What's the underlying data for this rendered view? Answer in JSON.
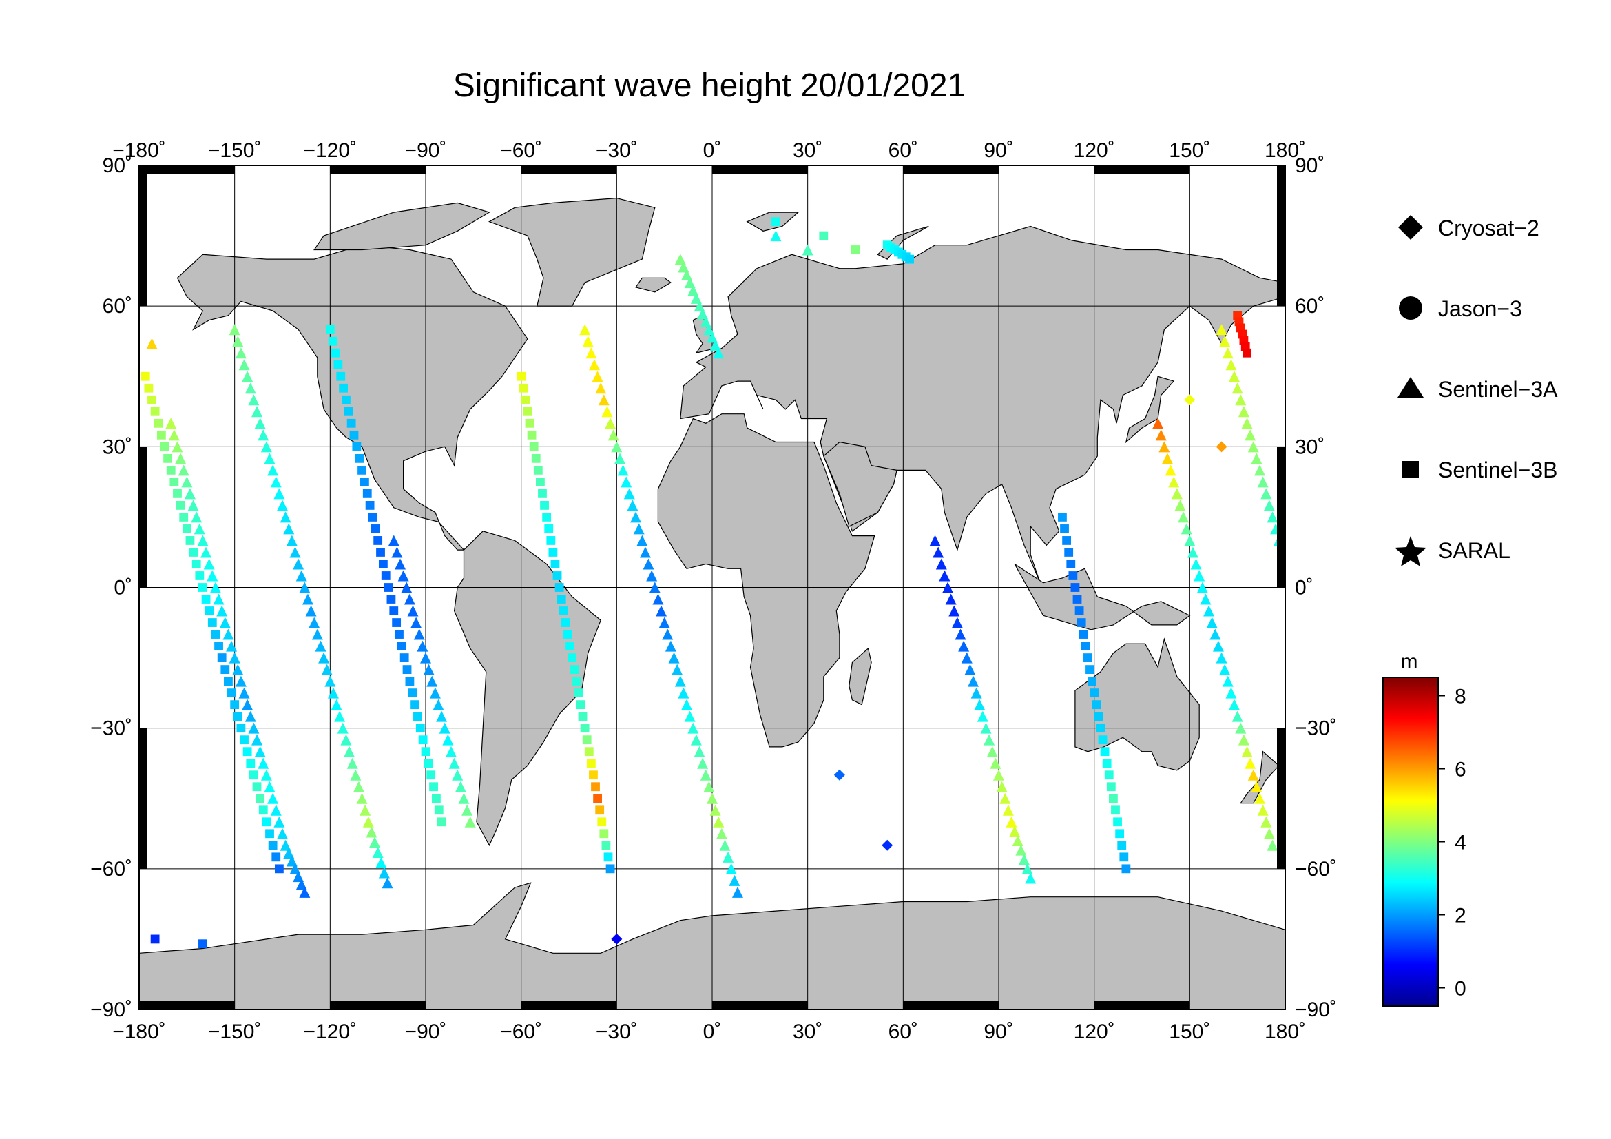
{
  "title": "Significant wave height 20/01/2021",
  "map": {
    "lon_ticks": [
      -180,
      -150,
      -120,
      -90,
      -60,
      -30,
      0,
      30,
      60,
      90,
      120,
      150,
      180
    ],
    "lat_ticks": [
      90,
      60,
      30,
      0,
      -30,
      -60,
      -90
    ],
    "lon_labels": [
      "−180˚",
      "−150˚",
      "−120˚",
      "−90˚",
      "−60˚",
      "−30˚",
      "0˚",
      "30˚",
      "60˚",
      "90˚",
      "120˚",
      "150˚",
      "180˚"
    ],
    "lat_labels": [
      "90˚",
      "60˚",
      "30˚",
      "0˚",
      "−30˚",
      "−60˚",
      "−90˚"
    ],
    "land_color": "#bebebe",
    "ocean_color": "#ffffff",
    "grid": true
  },
  "legend": {
    "items": [
      {
        "label": "Cryosat−2",
        "symbol": "diamond"
      },
      {
        "label": "Jason−3",
        "symbol": "circle"
      },
      {
        "label": "Sentinel−3A",
        "symbol": "triangle"
      },
      {
        "label": "Sentinel−3B",
        "symbol": "square"
      },
      {
        "label": "SARAL",
        "symbol": "star"
      }
    ]
  },
  "colorbar": {
    "unit": "m",
    "min": -0.5,
    "max": 8.5,
    "tick_values": [
      0,
      2,
      4,
      6,
      8
    ],
    "tick_labels": [
      "0",
      "2",
      "4",
      "6",
      "8"
    ],
    "colors": [
      "#00008f",
      "#0000ff",
      "#0080ff",
      "#00ffff",
      "#80ff80",
      "#ffff00",
      "#ff8000",
      "#ff0000",
      "#800000"
    ]
  },
  "chart_data": {
    "type": "scatter",
    "title": "Significant wave height 20/01/2021",
    "x_axis": "longitude",
    "y_axis": "latitude",
    "xlim": [
      -180,
      180
    ],
    "ylim": [
      -90,
      90
    ],
    "color_variable": "significant wave height (m)",
    "series": [
      {
        "name": "Sentinel−3A",
        "symbol": "triangle",
        "points": [
          [
            -176,
            52,
            5.5
          ],
          [
            -170,
            35,
            4.5
          ],
          [
            -164,
            20,
            3.5
          ],
          [
            -158,
            5,
            3
          ],
          [
            -152,
            -10,
            2.5
          ],
          [
            -146,
            -25,
            2
          ],
          [
            -140,
            -40,
            3
          ],
          [
            -134,
            -55,
            2.5
          ],
          [
            -128,
            -65,
            1.5
          ],
          [
            -150,
            55,
            4
          ],
          [
            -144,
            40,
            3.5
          ],
          [
            -138,
            25,
            3
          ],
          [
            -132,
            10,
            2.5
          ],
          [
            -126,
            -5,
            2
          ],
          [
            -120,
            -20,
            2.5
          ],
          [
            -114,
            -35,
            3.5
          ],
          [
            -108,
            -50,
            4.5
          ],
          [
            -102,
            -63,
            2
          ],
          [
            -100,
            10,
            1.5
          ],
          [
            -94,
            -5,
            1.5
          ],
          [
            -88,
            -20,
            2
          ],
          [
            -82,
            -35,
            3
          ],
          [
            -76,
            -50,
            4
          ],
          [
            -40,
            55,
            5
          ],
          [
            -34,
            40,
            5.5
          ],
          [
            -28,
            25,
            3
          ],
          [
            -22,
            10,
            2
          ],
          [
            -16,
            -5,
            1.5
          ],
          [
            -10,
            -20,
            2.5
          ],
          [
            -4,
            -35,
            3.5
          ],
          [
            2,
            -50,
            4.5
          ],
          [
            8,
            -65,
            2
          ],
          [
            -10,
            70,
            4
          ],
          [
            -4,
            60,
            3.5
          ],
          [
            2,
            50,
            3
          ],
          [
            20,
            75,
            3
          ],
          [
            30,
            72,
            3.5
          ],
          [
            70,
            10,
            1
          ],
          [
            76,
            -5,
            1
          ],
          [
            82,
            -20,
            2
          ],
          [
            88,
            -35,
            4
          ],
          [
            94,
            -50,
            5
          ],
          [
            100,
            -62,
            3
          ],
          [
            140,
            35,
            6.5
          ],
          [
            146,
            20,
            4.5
          ],
          [
            152,
            5,
            3
          ],
          [
            158,
            -10,
            2.5
          ],
          [
            164,
            -25,
            3
          ],
          [
            170,
            -40,
            5.5
          ],
          [
            176,
            -55,
            4
          ],
          [
            160,
            55,
            5
          ],
          [
            166,
            40,
            4.5
          ],
          [
            172,
            25,
            4
          ],
          [
            178,
            10,
            3
          ]
        ]
      },
      {
        "name": "Sentinel−3B",
        "symbol": "square",
        "points": [
          [
            -178,
            45,
            5
          ],
          [
            -172,
            30,
            4
          ],
          [
            -166,
            15,
            3.5
          ],
          [
            -160,
            0,
            3
          ],
          [
            -154,
            -15,
            2
          ],
          [
            -148,
            -30,
            2.5
          ],
          [
            -142,
            -45,
            3.5
          ],
          [
            -136,
            -60,
            1.5
          ],
          [
            -120,
            55,
            3
          ],
          [
            -115,
            40,
            2.5
          ],
          [
            -110,
            25,
            2
          ],
          [
            -105,
            10,
            1.5
          ],
          [
            -100,
            -5,
            1.5
          ],
          [
            -95,
            -20,
            2
          ],
          [
            -90,
            -35,
            3
          ],
          [
            -85,
            -50,
            3.5
          ],
          [
            -60,
            45,
            5
          ],
          [
            -56,
            30,
            4
          ],
          [
            -52,
            15,
            3
          ],
          [
            -48,
            0,
            2.5
          ],
          [
            -44,
            -15,
            3
          ],
          [
            -40,
            -30,
            3.5
          ],
          [
            -36,
            -45,
            6.5
          ],
          [
            -32,
            -60,
            2
          ],
          [
            20,
            78,
            3
          ],
          [
            35,
            75,
            3.5
          ],
          [
            45,
            72,
            4
          ],
          [
            55,
            73,
            3
          ],
          [
            62,
            70,
            2.5
          ],
          [
            110,
            15,
            2
          ],
          [
            114,
            0,
            1.5
          ],
          [
            118,
            -15,
            2
          ],
          [
            122,
            -30,
            2.5
          ],
          [
            126,
            -45,
            3.5
          ],
          [
            130,
            -60,
            2
          ],
          [
            165,
            58,
            7
          ],
          [
            168,
            50,
            7.5
          ],
          [
            -175,
            -75,
            1
          ],
          [
            -160,
            -76,
            1.5
          ]
        ]
      },
      {
        "name": "Cryosat−2",
        "symbol": "diamond",
        "points": [
          [
            160,
            30,
            6
          ],
          [
            150,
            40,
            5
          ],
          [
            40,
            -40,
            1.5
          ],
          [
            55,
            -55,
            1
          ],
          [
            -30,
            -75,
            0.5
          ]
        ]
      }
    ]
  }
}
